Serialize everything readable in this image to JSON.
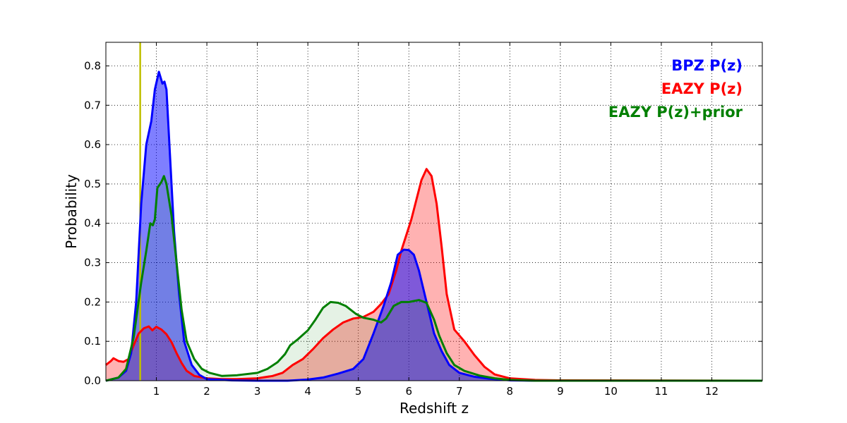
{
  "chart_data": {
    "type": "area",
    "xlabel": "Redshift z",
    "ylabel": "Probability",
    "xlim": [
      0,
      13
    ],
    "ylim": [
      0,
      0.86
    ],
    "x_ticks": [
      1,
      2,
      3,
      4,
      5,
      6,
      7,
      8,
      9,
      10,
      11,
      12
    ],
    "x_tick_labels": [
      "1",
      "2",
      "3",
      "4",
      "5",
      "6",
      "7",
      "8",
      "9",
      "10",
      "11",
      "12"
    ],
    "y_ticks": [
      0.0,
      0.1,
      0.2,
      0.3,
      0.4,
      0.5,
      0.6,
      0.7,
      0.8
    ],
    "y_tick_labels": [
      "0.0",
      "0.1",
      "0.2",
      "0.3",
      "0.4",
      "0.5",
      "0.6",
      "0.7",
      "0.8"
    ],
    "grid": true,
    "legend_position": "top-right",
    "vline": {
      "x": 0.68,
      "color": "#bfbf00"
    },
    "series": [
      {
        "name": "EAZY P(z)",
        "color": "#ff0000",
        "fill": "#ff0000",
        "fill_opacity": 0.3,
        "points": [
          [
            0,
            0.04
          ],
          [
            0.1,
            0.05
          ],
          [
            0.15,
            0.057
          ],
          [
            0.25,
            0.05
          ],
          [
            0.35,
            0.048
          ],
          [
            0.45,
            0.055
          ],
          [
            0.55,
            0.09
          ],
          [
            0.65,
            0.12
          ],
          [
            0.75,
            0.133
          ],
          [
            0.85,
            0.138
          ],
          [
            0.92,
            0.128
          ],
          [
            1.0,
            0.137
          ],
          [
            1.1,
            0.13
          ],
          [
            1.2,
            0.118
          ],
          [
            1.3,
            0.098
          ],
          [
            1.4,
            0.07
          ],
          [
            1.5,
            0.045
          ],
          [
            1.6,
            0.025
          ],
          [
            1.75,
            0.012
          ],
          [
            2.0,
            0.006
          ],
          [
            2.3,
            0.004
          ],
          [
            2.6,
            0.004
          ],
          [
            3.0,
            0.006
          ],
          [
            3.3,
            0.012
          ],
          [
            3.5,
            0.02
          ],
          [
            3.7,
            0.04
          ],
          [
            3.9,
            0.055
          ],
          [
            4.1,
            0.08
          ],
          [
            4.3,
            0.108
          ],
          [
            4.5,
            0.13
          ],
          [
            4.7,
            0.148
          ],
          [
            4.9,
            0.158
          ],
          [
            5.1,
            0.162
          ],
          [
            5.3,
            0.175
          ],
          [
            5.45,
            0.195
          ],
          [
            5.6,
            0.22
          ],
          [
            5.75,
            0.28
          ],
          [
            5.85,
            0.33
          ],
          [
            5.95,
            0.37
          ],
          [
            6.05,
            0.41
          ],
          [
            6.15,
            0.46
          ],
          [
            6.25,
            0.51
          ],
          [
            6.35,
            0.538
          ],
          [
            6.45,
            0.52
          ],
          [
            6.55,
            0.45
          ],
          [
            6.65,
            0.34
          ],
          [
            6.75,
            0.22
          ],
          [
            6.9,
            0.13
          ],
          [
            7.1,
            0.1
          ],
          [
            7.3,
            0.065
          ],
          [
            7.5,
            0.035
          ],
          [
            7.7,
            0.016
          ],
          [
            8.0,
            0.006
          ],
          [
            8.5,
            0.002
          ],
          [
            9,
            0.001
          ],
          [
            13,
            0.0
          ]
        ]
      },
      {
        "name": "BPZ P(z)",
        "color": "#0000ff",
        "fill": "#0000ff",
        "fill_opacity": 0.5,
        "points": [
          [
            0,
            0.0
          ],
          [
            0.25,
            0.008
          ],
          [
            0.4,
            0.025
          ],
          [
            0.5,
            0.07
          ],
          [
            0.6,
            0.2
          ],
          [
            0.7,
            0.45
          ],
          [
            0.8,
            0.6
          ],
          [
            0.9,
            0.66
          ],
          [
            0.97,
            0.74
          ],
          [
            1.05,
            0.785
          ],
          [
            1.12,
            0.755
          ],
          [
            1.16,
            0.76
          ],
          [
            1.2,
            0.74
          ],
          [
            1.25,
            0.62
          ],
          [
            1.3,
            0.5
          ],
          [
            1.35,
            0.38
          ],
          [
            1.45,
            0.22
          ],
          [
            1.55,
            0.1
          ],
          [
            1.7,
            0.04
          ],
          [
            1.85,
            0.015
          ],
          [
            2.0,
            0.004
          ],
          [
            2.5,
            0.001
          ],
          [
            3.0,
            0.0
          ],
          [
            3.6,
            0.0
          ],
          [
            4.0,
            0.003
          ],
          [
            4.3,
            0.008
          ],
          [
            4.6,
            0.018
          ],
          [
            4.9,
            0.03
          ],
          [
            5.1,
            0.055
          ],
          [
            5.3,
            0.12
          ],
          [
            5.5,
            0.19
          ],
          [
            5.65,
            0.25
          ],
          [
            5.78,
            0.32
          ],
          [
            5.9,
            0.333
          ],
          [
            6.0,
            0.332
          ],
          [
            6.1,
            0.32
          ],
          [
            6.2,
            0.28
          ],
          [
            6.35,
            0.2
          ],
          [
            6.5,
            0.12
          ],
          [
            6.65,
            0.075
          ],
          [
            6.8,
            0.04
          ],
          [
            7.0,
            0.02
          ],
          [
            7.3,
            0.01
          ],
          [
            7.6,
            0.005
          ],
          [
            8.0,
            0.001
          ],
          [
            8.5,
            0.0
          ],
          [
            13,
            0.0
          ]
        ]
      },
      {
        "name": "EAZY P(z)+prior",
        "color": "#007f00",
        "fill": "#007f00",
        "fill_opacity": 0.1,
        "points": [
          [
            0,
            0.0
          ],
          [
            0.25,
            0.008
          ],
          [
            0.4,
            0.03
          ],
          [
            0.55,
            0.11
          ],
          [
            0.7,
            0.25
          ],
          [
            0.8,
            0.33
          ],
          [
            0.88,
            0.4
          ],
          [
            0.93,
            0.395
          ],
          [
            0.97,
            0.41
          ],
          [
            1.02,
            0.49
          ],
          [
            1.1,
            0.505
          ],
          [
            1.15,
            0.52
          ],
          [
            1.2,
            0.5
          ],
          [
            1.3,
            0.42
          ],
          [
            1.4,
            0.3
          ],
          [
            1.5,
            0.18
          ],
          [
            1.6,
            0.1
          ],
          [
            1.75,
            0.055
          ],
          [
            1.9,
            0.03
          ],
          [
            2.05,
            0.02
          ],
          [
            2.3,
            0.012
          ],
          [
            2.6,
            0.014
          ],
          [
            3.0,
            0.02
          ],
          [
            3.2,
            0.03
          ],
          [
            3.4,
            0.047
          ],
          [
            3.55,
            0.068
          ],
          [
            3.65,
            0.09
          ],
          [
            3.8,
            0.105
          ],
          [
            4.0,
            0.128
          ],
          [
            4.15,
            0.155
          ],
          [
            4.3,
            0.185
          ],
          [
            4.45,
            0.2
          ],
          [
            4.6,
            0.198
          ],
          [
            4.75,
            0.19
          ],
          [
            4.95,
            0.17
          ],
          [
            5.1,
            0.16
          ],
          [
            5.3,
            0.155
          ],
          [
            5.45,
            0.148
          ],
          [
            5.55,
            0.158
          ],
          [
            5.7,
            0.19
          ],
          [
            5.85,
            0.2
          ],
          [
            6.0,
            0.2
          ],
          [
            6.2,
            0.205
          ],
          [
            6.35,
            0.198
          ],
          [
            6.5,
            0.155
          ],
          [
            6.6,
            0.115
          ],
          [
            6.75,
            0.07
          ],
          [
            6.9,
            0.04
          ],
          [
            7.1,
            0.025
          ],
          [
            7.4,
            0.013
          ],
          [
            7.7,
            0.006
          ],
          [
            8.0,
            0.002
          ],
          [
            8.5,
            0.0
          ],
          [
            13,
            0.0
          ]
        ]
      }
    ]
  }
}
